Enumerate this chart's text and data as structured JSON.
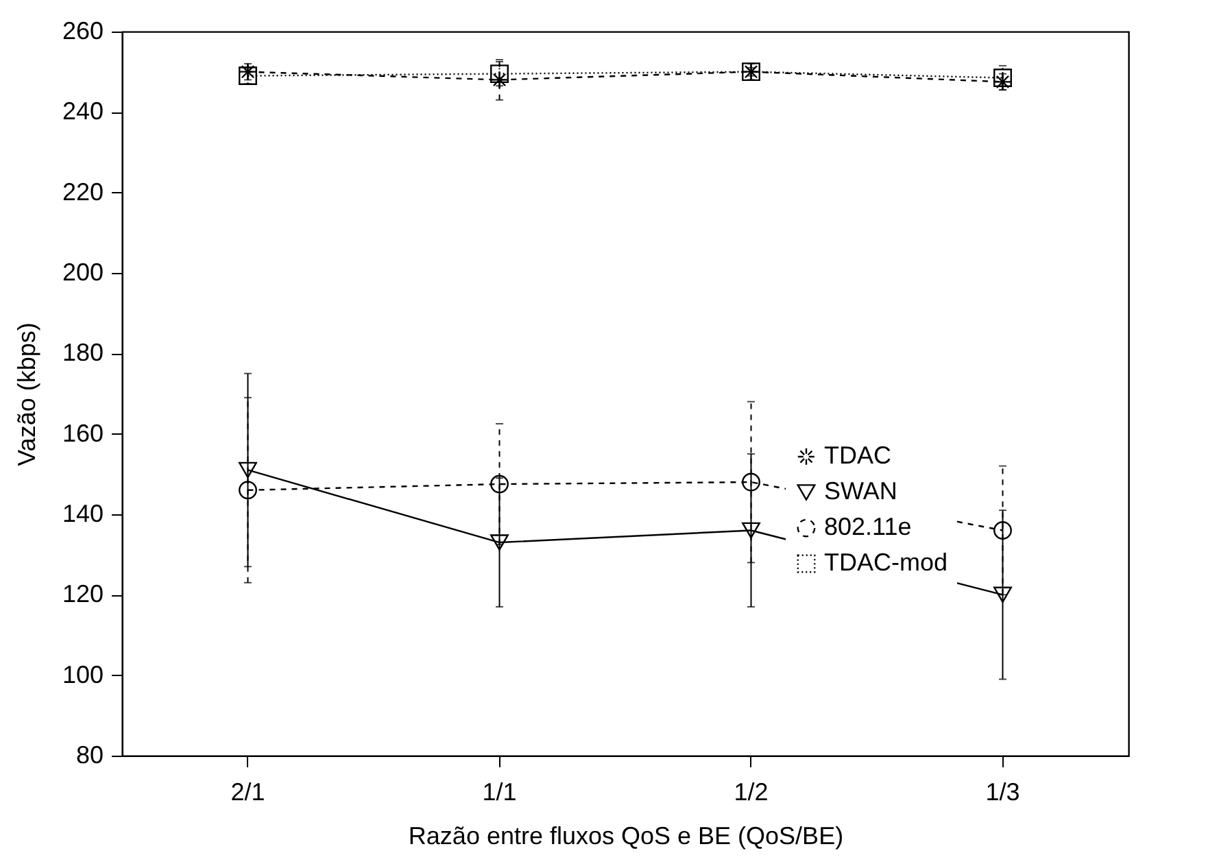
{
  "chart_data": {
    "type": "line",
    "xlabel": "Razão entre fluxos QoS e BE (QoS/BE)",
    "ylabel": "Vazão (kbps)",
    "categories": [
      "2/1",
      "1/1",
      "1/2",
      "1/3"
    ],
    "series": [
      {
        "name": "TDAC",
        "color": "#000000",
        "marker": "cross",
        "line_style": "dashed",
        "values": [
          250,
          248,
          250,
          247.5
        ],
        "errors": [
          2,
          5,
          2,
          2
        ]
      },
      {
        "name": "SWAN",
        "color": "#000000",
        "marker": "triangle",
        "line_style": "solid",
        "values": [
          151,
          133,
          136,
          120
        ],
        "errors": [
          24,
          16,
          19,
          21
        ]
      },
      {
        "name": "802.11e",
        "color": "#000000",
        "marker": "circle",
        "line_style": "dashed",
        "values": [
          146,
          147.5,
          148,
          136
        ],
        "errors": [
          23,
          15,
          20,
          16
        ]
      },
      {
        "name": "TDAC-mod",
        "color": "#000000",
        "marker": "square",
        "line_style": "dotted",
        "values": [
          249,
          249.5,
          250,
          248.5
        ],
        "errors": [
          2,
          3,
          1,
          3
        ]
      }
    ],
    "ylim": [
      80,
      260
    ],
    "yticks": [
      80,
      100,
      120,
      140,
      160,
      180,
      200,
      220,
      240,
      260
    ],
    "grid": false,
    "legend": "bottom right"
  }
}
